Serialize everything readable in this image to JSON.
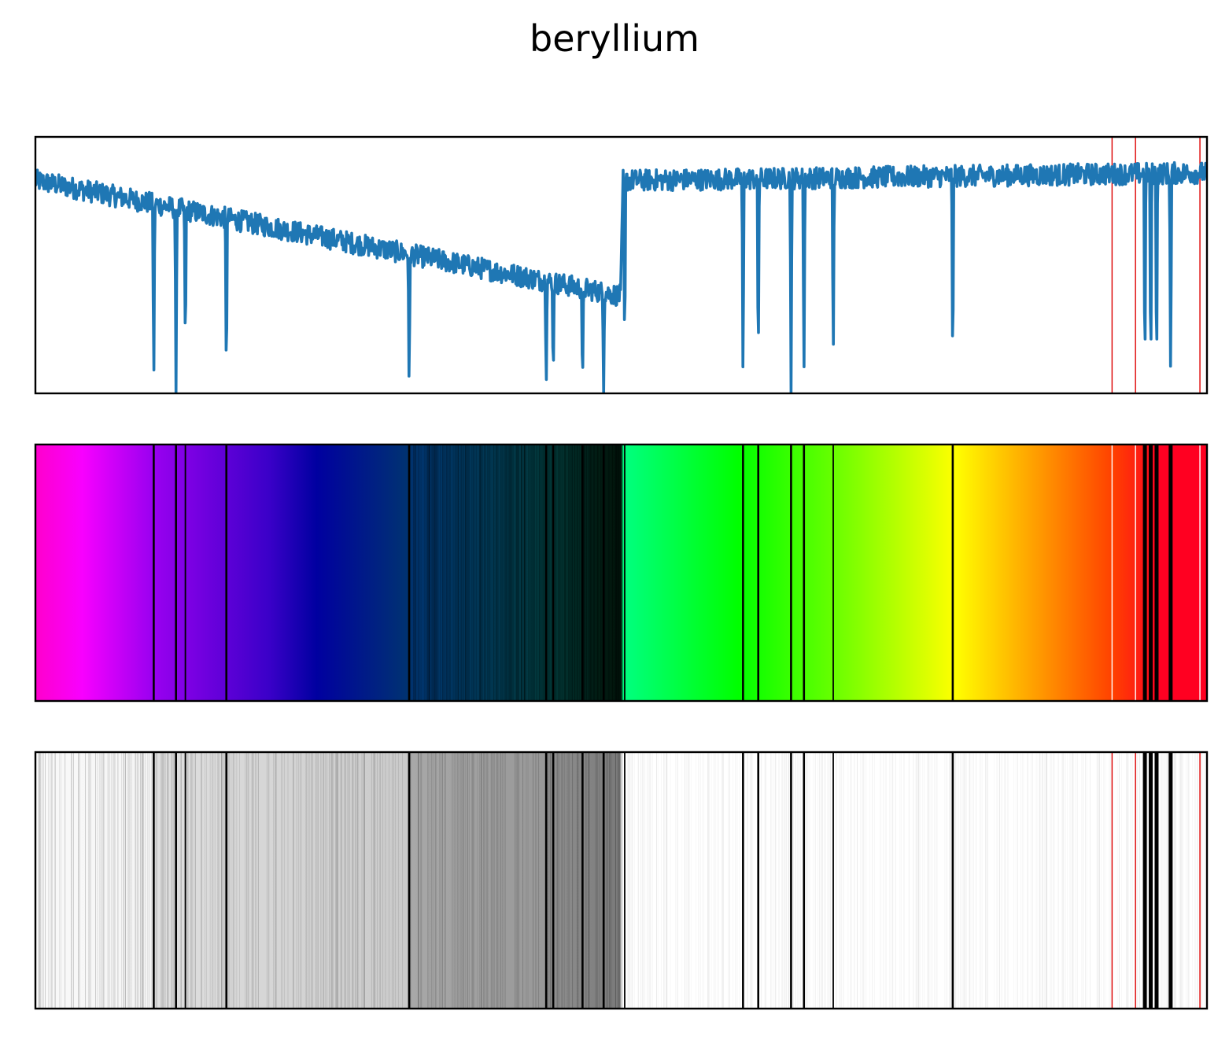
{
  "chart_data": [
    {
      "type": "line",
      "title": "beryllium",
      "panel": "intensity-spectrum",
      "x_range": [
        0,
        1
      ],
      "ylim": [
        0,
        1
      ],
      "grid": false,
      "axis_ticks": false,
      "series_color": "#1f77b4",
      "continuum": [
        {
          "x": 0.0,
          "y": 0.83
        },
        {
          "x": 0.5,
          "y": 0.38
        },
        {
          "x": 0.498,
          "y": 0.4
        },
        {
          "x": 0.502,
          "y": 0.83
        },
        {
          "x": 1.0,
          "y": 0.86
        }
      ],
      "absorption_lines": [
        {
          "x": 0.101,
          "min": 0.0
        },
        {
          "x": 0.12,
          "min": 0.0
        },
        {
          "x": 0.128,
          "min": 0.13
        },
        {
          "x": 0.163,
          "min": 0.0
        },
        {
          "x": 0.319,
          "min": 0.0
        },
        {
          "x": 0.436,
          "min": 0.0
        },
        {
          "x": 0.442,
          "min": 0.03
        },
        {
          "x": 0.467,
          "min": 0.0
        },
        {
          "x": 0.485,
          "min": 0.0
        },
        {
          "x": 0.503,
          "min": 0.11
        },
        {
          "x": 0.604,
          "min": 0.0
        },
        {
          "x": 0.617,
          "min": 0.04
        },
        {
          "x": 0.645,
          "min": 0.0
        },
        {
          "x": 0.656,
          "min": 0.0
        },
        {
          "x": 0.681,
          "min": 0.1
        },
        {
          "x": 0.783,
          "min": 0.02
        },
        {
          "x": 0.947,
          "min": 0.0
        },
        {
          "x": 0.952,
          "min": 0.0
        },
        {
          "x": 0.957,
          "min": 0.0
        },
        {
          "x": 0.969,
          "min": 0.0
        }
      ],
      "reference_lines": {
        "x": [
          0.919,
          0.939,
          0.994
        ],
        "color": "#dd0000"
      }
    },
    {
      "type": "heatmap",
      "panel": "colour-spectrum",
      "x_range": [
        0,
        1
      ],
      "gradient_stops": [
        {
          "x": 0.0,
          "color": "#ff00cc"
        },
        {
          "x": 0.04,
          "color": "#f800ff"
        },
        {
          "x": 0.1,
          "color": "#9a00f0"
        },
        {
          "x": 0.2,
          "color": "#3a00c8"
        },
        {
          "x": 0.24,
          "color": "#0000a0"
        },
        {
          "x": 0.32,
          "color": "#003470"
        },
        {
          "x": 0.44,
          "color": "#023838"
        },
        {
          "x": 0.48,
          "color": "#022016"
        },
        {
          "x": 0.5,
          "color": "#011008"
        },
        {
          "x": 0.502,
          "color": "#00ff80"
        },
        {
          "x": 0.6,
          "color": "#00ff00"
        },
        {
          "x": 0.68,
          "color": "#66ff00"
        },
        {
          "x": 0.785,
          "color": "#ffff00"
        },
        {
          "x": 0.92,
          "color": "#ff4000"
        },
        {
          "x": 0.96,
          "color": "#ff0022"
        },
        {
          "x": 1.0,
          "color": "#ff0020"
        }
      ],
      "line_color": "#000000",
      "reference_line_color": "#ffffff"
    },
    {
      "type": "heatmap",
      "panel": "absorption-barcode",
      "x_range": [
        0,
        1
      ],
      "background_color": "#ffffff",
      "line_color": "#000000",
      "reference_line_color": "#dd0000"
    }
  ]
}
